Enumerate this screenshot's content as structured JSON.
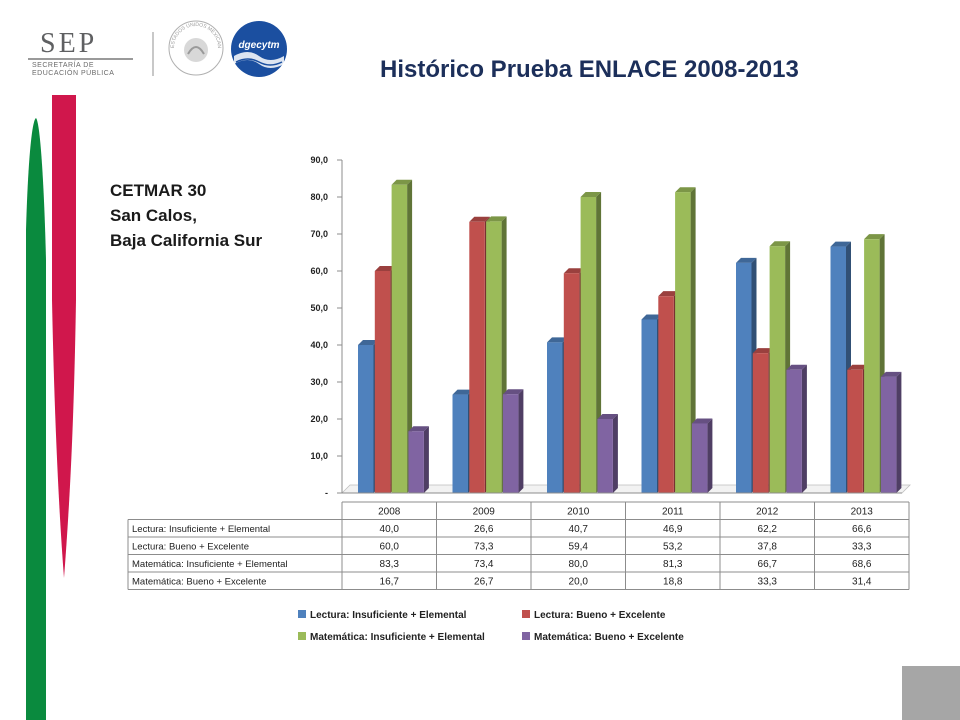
{
  "header": {
    "sep_logo_text": "SEP",
    "sep_logo_subtitle": [
      "SECRETARÍA DE",
      "EDUCACIÓN PÚBLICA"
    ],
    "seal_text": "ESTADOS UNIDOS MEXICANOS",
    "dgec_logo_text": "dgecytm",
    "title": "Histórico Prueba ENLACE 2008-2013"
  },
  "location": {
    "line1": "CETMAR 30",
    "line2": "San Calos,",
    "line3": "Baja California Sur"
  },
  "colors": {
    "lectura_insuficiente": "#4f81bd",
    "lectura_bueno": "#c0504d",
    "matematica_insuficiente": "#9bbb59",
    "matematica_bueno": "#8064a2",
    "title": "#1c2f5a",
    "green_stripe": "#0a8a3e",
    "red_stripe": "#d0174c"
  },
  "chart_data": {
    "type": "bar",
    "categories": [
      "2008",
      "2009",
      "2010",
      "2011",
      "2012",
      "2013"
    ],
    "series": [
      {
        "name": "Lectura: Insuficiente + Elemental",
        "values": [
          40.0,
          26.6,
          40.7,
          46.9,
          62.2,
          66.6
        ],
        "labels": [
          "40,0",
          "26,6",
          "40,7",
          "46,9",
          "62,2",
          "66,6"
        ]
      },
      {
        "name": "Lectura: Bueno + Excelente",
        "values": [
          60.0,
          73.3,
          59.4,
          53.2,
          37.8,
          33.3
        ],
        "labels": [
          "60,0",
          "73,3",
          "59,4",
          "53,2",
          "37,8",
          "33,3"
        ]
      },
      {
        "name": "Matemática: Insuficiente + Elemental",
        "values": [
          83.3,
          73.4,
          80.0,
          81.3,
          66.7,
          68.6
        ],
        "labels": [
          "83,3",
          "73,4",
          "80,0",
          "81,3",
          "66,7",
          "68,6"
        ]
      },
      {
        "name": "Matemática: Bueno + Excelente",
        "values": [
          16.7,
          26.7,
          20.0,
          18.8,
          33.3,
          31.4
        ],
        "labels": [
          "16,7",
          "26,7",
          "20,0",
          "18,8",
          "33,3",
          "31,4"
        ]
      }
    ],
    "ylim": [
      0,
      90
    ],
    "y_ticks": [
      "-",
      "10,0",
      "20,0",
      "30,0",
      "40,0",
      "50,0",
      "60,0",
      "70,0",
      "80,0",
      "90,0"
    ],
    "style": "3d-clustered-column",
    "data_table": true,
    "legend_position": "bottom",
    "grid": false
  }
}
